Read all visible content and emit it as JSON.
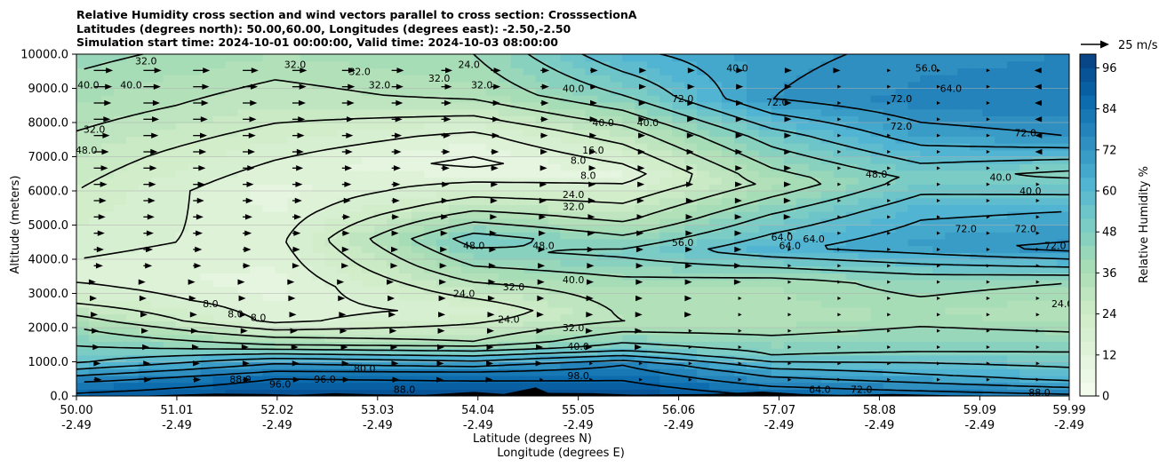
{
  "chart_data": {
    "type": "heatmap",
    "title_lines": [
      "Relative Humidity cross section and wind vectors parallel to cross section: CrosssectionA",
      "Latitudes (degrees north): 50.00,60.00, Longitudes (degrees east): -2.50,-2.50",
      "Simulation start time: 2024-10-01 00:00:00, Valid time: 2024-10-03 08:00:00"
    ],
    "ylabel": "Altitude (meters)",
    "xlabel_lines": [
      "Latitude (degrees N)",
      "Longitude (degrees E)"
    ],
    "x_ticks": [
      {
        "lat": "50.00",
        "lon": "-2.49",
        "value": 50.0
      },
      {
        "lat": "51.01",
        "lon": "-2.49",
        "value": 51.01
      },
      {
        "lat": "52.02",
        "lon": "-2.49",
        "value": 52.02
      },
      {
        "lat": "53.03",
        "lon": "-2.49",
        "value": 53.03
      },
      {
        "lat": "54.04",
        "lon": "-2.49",
        "value": 54.04
      },
      {
        "lat": "55.05",
        "lon": "-2.49",
        "value": 55.05
      },
      {
        "lat": "56.06",
        "lon": "-2.49",
        "value": 56.06
      },
      {
        "lat": "57.07",
        "lon": "-2.49",
        "value": 57.07
      },
      {
        "lat": "58.08",
        "lon": "-2.49",
        "value": 58.08
      },
      {
        "lat": "59.09",
        "lon": "-2.49",
        "value": 59.09
      },
      {
        "lat": "59.99",
        "lon": "-2.49",
        "value": 59.99
      }
    ],
    "xlim": [
      50.0,
      59.99
    ],
    "y_ticks": [
      "0.0",
      "1000.0",
      "2000.0",
      "3000.0",
      "4000.0",
      "5000.0",
      "6000.0",
      "7000.0",
      "8000.0",
      "9000.0",
      "10000.0"
    ],
    "ylim": [
      0,
      10000
    ],
    "grid": "horizontal",
    "colorbar": {
      "label": "Relative Humidity %",
      "ticks": [
        "0",
        "12",
        "24",
        "36",
        "48",
        "60",
        "72",
        "84",
        "96"
      ],
      "range": [
        0,
        100
      ],
      "colormap": [
        "#f7fcf0",
        "#e0f3db",
        "#ccebc5",
        "#a8ddb5",
        "#7bccc4",
        "#4eb3d3",
        "#2b8cbe",
        "#0868ac",
        "#084081"
      ]
    },
    "quiver_key": {
      "label": "25 m/s",
      "speed": 25
    },
    "rh_profile_columns": [
      {
        "lat": 50.0,
        "bands": [
          [
            0,
            90
          ],
          [
            400,
            80
          ],
          [
            1000,
            55
          ],
          [
            2000,
            40
          ],
          [
            2800,
            22
          ],
          [
            3500,
            14
          ],
          [
            5500,
            22
          ],
          [
            7000,
            28
          ],
          [
            8500,
            36
          ],
          [
            10000,
            42
          ]
        ]
      },
      {
        "lat": 52.0,
        "bands": [
          [
            0,
            95
          ],
          [
            500,
            88
          ],
          [
            1000,
            70
          ],
          [
            1500,
            40
          ],
          [
            2200,
            14
          ],
          [
            3200,
            10
          ],
          [
            4500,
            14
          ],
          [
            6000,
            10
          ],
          [
            7200,
            18
          ],
          [
            8500,
            28
          ],
          [
            10000,
            36
          ]
        ]
      },
      {
        "lat": 54.0,
        "bands": [
          [
            0,
            96
          ],
          [
            600,
            85
          ],
          [
            1100,
            60
          ],
          [
            1600,
            32
          ],
          [
            2500,
            18
          ],
          [
            3800,
            40
          ],
          [
            4600,
            52
          ],
          [
            5500,
            30
          ],
          [
            6800,
            6
          ],
          [
            7600,
            14
          ],
          [
            8800,
            34
          ],
          [
            10000,
            40
          ]
        ]
      },
      {
        "lat": 55.5,
        "bands": [
          [
            0,
            96
          ],
          [
            900,
            80
          ],
          [
            1400,
            52
          ],
          [
            2200,
            32
          ],
          [
            3200,
            36
          ],
          [
            4200,
            50
          ],
          [
            5200,
            30
          ],
          [
            6500,
            12
          ],
          [
            7800,
            30
          ],
          [
            8800,
            48
          ],
          [
            10000,
            62
          ]
        ]
      },
      {
        "lat": 57.0,
        "bands": [
          [
            0,
            88
          ],
          [
            700,
            68
          ],
          [
            1200,
            48
          ],
          [
            2200,
            34
          ],
          [
            3300,
            36
          ],
          [
            4300,
            62
          ],
          [
            5200,
            50
          ],
          [
            6200,
            34
          ],
          [
            7600,
            52
          ],
          [
            8700,
            72
          ],
          [
            10000,
            70
          ]
        ]
      },
      {
        "lat": 58.5,
        "bands": [
          [
            0,
            85
          ],
          [
            600,
            65
          ],
          [
            1300,
            48
          ],
          [
            2400,
            36
          ],
          [
            3400,
            44
          ],
          [
            4400,
            70
          ],
          [
            5400,
            62
          ],
          [
            6400,
            50
          ],
          [
            7600,
            68
          ],
          [
            8600,
            78
          ],
          [
            10000,
            74
          ]
        ]
      },
      {
        "lat": 59.99,
        "bands": [
          [
            0,
            82
          ],
          [
            500,
            62
          ],
          [
            1400,
            46
          ],
          [
            2500,
            32
          ],
          [
            3300,
            40
          ],
          [
            4300,
            74
          ],
          [
            5400,
            64
          ],
          [
            6500,
            46
          ],
          [
            7600,
            72
          ],
          [
            8600,
            80
          ],
          [
            10000,
            76
          ]
        ]
      }
    ],
    "contour_labels": [
      {
        "text": "32.0",
        "lat": 50.7,
        "alt": 9800
      },
      {
        "text": "40.0",
        "lat": 50.12,
        "alt": 9100
      },
      {
        "text": "40.0",
        "lat": 50.55,
        "alt": 9100
      },
      {
        "text": "32.0",
        "lat": 50.18,
        "alt": 7800
      },
      {
        "text": "48.0",
        "lat": 50.1,
        "alt": 7200
      },
      {
        "text": "32.0",
        "lat": 52.2,
        "alt": 9700
      },
      {
        "text": "32.0",
        "lat": 52.85,
        "alt": 9500
      },
      {
        "text": "32.0",
        "lat": 53.05,
        "alt": 9100
      },
      {
        "text": "32.0",
        "lat": 53.65,
        "alt": 9300
      },
      {
        "text": "24.0",
        "lat": 53.95,
        "alt": 9700
      },
      {
        "text": "32.0",
        "lat": 54.08,
        "alt": 9100
      },
      {
        "text": "40.0",
        "lat": 55.0,
        "alt": 9000
      },
      {
        "text": "40.0",
        "lat": 55.3,
        "alt": 8000
      },
      {
        "text": "40.0",
        "lat": 55.75,
        "alt": 8000
      },
      {
        "text": "16.0",
        "lat": 55.2,
        "alt": 7200
      },
      {
        "text": "8.0",
        "lat": 55.05,
        "alt": 6900
      },
      {
        "text": "8.0",
        "lat": 55.15,
        "alt": 6450
      },
      {
        "text": "24.0",
        "lat": 55.0,
        "alt": 5900
      },
      {
        "text": "32.0",
        "lat": 55.0,
        "alt": 5550
      },
      {
        "text": "48.0",
        "lat": 54.0,
        "alt": 4400
      },
      {
        "text": "48.0",
        "lat": 54.7,
        "alt": 4400
      },
      {
        "text": "56.0",
        "lat": 56.1,
        "alt": 4500
      },
      {
        "text": "64.0",
        "lat": 57.1,
        "alt": 4650
      },
      {
        "text": "64.0",
        "lat": 57.18,
        "alt": 4400
      },
      {
        "text": "64.0",
        "lat": 57.42,
        "alt": 4600
      },
      {
        "text": "40.0",
        "lat": 55.0,
        "alt": 3400
      },
      {
        "text": "32.0",
        "lat": 54.4,
        "alt": 3200
      },
      {
        "text": "24.0",
        "lat": 53.9,
        "alt": 3000
      },
      {
        "text": "24.0",
        "lat": 54.35,
        "alt": 2250
      },
      {
        "text": "32.0",
        "lat": 55.0,
        "alt": 2000
      },
      {
        "text": "8.0",
        "lat": 51.35,
        "alt": 2700
      },
      {
        "text": "8.0",
        "lat": 51.6,
        "alt": 2400
      },
      {
        "text": "8.0",
        "lat": 51.83,
        "alt": 2300
      },
      {
        "text": "40.0",
        "lat": 55.05,
        "alt": 1450
      },
      {
        "text": "88.0",
        "lat": 51.65,
        "alt": 500
      },
      {
        "text": "96.0",
        "lat": 52.05,
        "alt": 350
      },
      {
        "text": "96.0",
        "lat": 52.5,
        "alt": 500
      },
      {
        "text": "80.0",
        "lat": 52.9,
        "alt": 800
      },
      {
        "text": "88.0",
        "lat": 53.3,
        "alt": 200
      },
      {
        "text": "98.0",
        "lat": 55.05,
        "alt": 600
      },
      {
        "text": "72.0",
        "lat": 57.05,
        "alt": 8600
      },
      {
        "text": "72.0",
        "lat": 56.1,
        "alt": 8700
      },
      {
        "text": "40.0",
        "lat": 56.65,
        "alt": 9600
      },
      {
        "text": "72.0",
        "lat": 58.3,
        "alt": 8700
      },
      {
        "text": "72.0",
        "lat": 58.3,
        "alt": 7900
      },
      {
        "text": "72.0",
        "lat": 59.55,
        "alt": 7700
      },
      {
        "text": "48.0",
        "lat": 58.05,
        "alt": 6500
      },
      {
        "text": "40.0",
        "lat": 59.3,
        "alt": 6400
      },
      {
        "text": "40.0",
        "lat": 59.6,
        "alt": 6000
      },
      {
        "text": "72.0",
        "lat": 58.95,
        "alt": 4900
      },
      {
        "text": "72.0",
        "lat": 59.55,
        "alt": 4900
      },
      {
        "text": "72.0",
        "lat": 59.85,
        "alt": 4400
      },
      {
        "text": "64.0",
        "lat": 58.8,
        "alt": 9000
      },
      {
        "text": "56.0",
        "lat": 58.55,
        "alt": 9600
      },
      {
        "text": "24.0",
        "lat": 59.92,
        "alt": 2700
      },
      {
        "text": "64.0",
        "lat": 57.48,
        "alt": 200
      },
      {
        "text": "72.0",
        "lat": 57.9,
        "alt": 200
      },
      {
        "text": "88.0",
        "lat": 59.69,
        "alt": 100
      }
    ]
  }
}
